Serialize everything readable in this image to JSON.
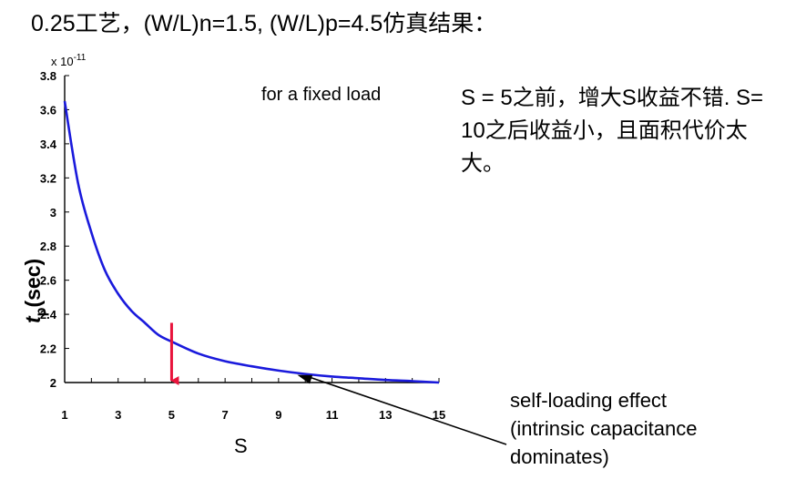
{
  "header": {
    "title": "0.25工艺，(W/L)n=1.5, (W/L)p=4.5仿真结果："
  },
  "note": {
    "text": "S = 5之前，增大S收益不错. S= 10之后收益小，且面积代价太大。"
  },
  "annotation": {
    "text": "self-loading effect\n(intrinsic capacitance\ndominates)"
  },
  "chart_data": {
    "type": "line",
    "title": "",
    "inset_label": "for a fixed load",
    "exponent_label": "x 10",
    "exponent_power": "-11",
    "xlabel": "S",
    "ylabel_main": "t",
    "ylabel_sub": "p",
    "ylabel_tail": "(sec)",
    "xlim": [
      1,
      15
    ],
    "ylim": [
      2,
      3.8
    ],
    "xticks": [
      "1",
      "3",
      "5",
      "7",
      "9",
      "11",
      "13",
      "15"
    ],
    "yticks": [
      "2",
      "2.2",
      "2.4",
      "2.6",
      "2.8",
      "3",
      "3.2",
      "3.4",
      "3.6",
      "3.8"
    ],
    "series": [
      {
        "color": "#1a1adc",
        "x": [
          1,
          1.5,
          2,
          2.5,
          3,
          3.5,
          4,
          4.5,
          5,
          6,
          7,
          8,
          9,
          10,
          11,
          12,
          13,
          14,
          15
        ],
        "y": [
          3.65,
          3.17,
          2.88,
          2.66,
          2.52,
          2.42,
          2.35,
          2.28,
          2.24,
          2.17,
          2.125,
          2.095,
          2.07,
          2.05,
          2.035,
          2.025,
          2.015,
          2.008,
          2.0
        ]
      }
    ],
    "markers": [
      {
        "type": "arrow",
        "color": "#e8143c",
        "x": 5,
        "y_from": 2.35,
        "y_to": 2.0
      }
    ],
    "callout": {
      "target_x": 9.7,
      "target_y": 2.045
    }
  }
}
